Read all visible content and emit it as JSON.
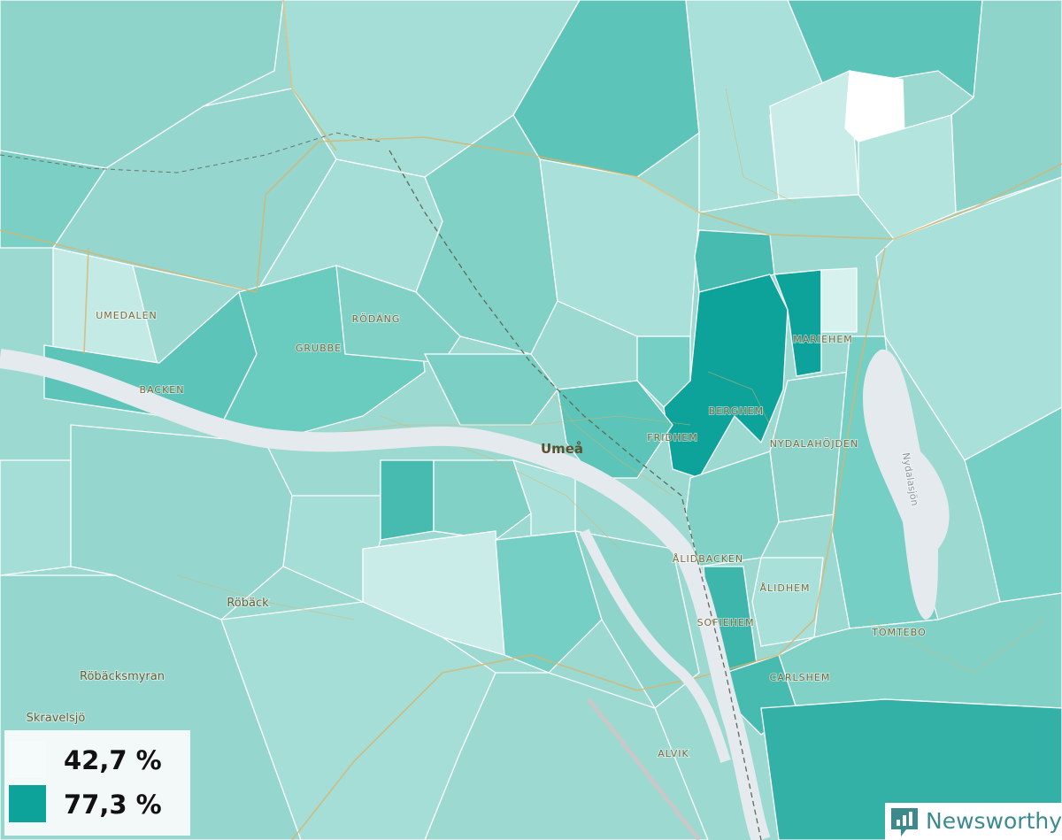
{
  "places": [
    "UMEDALEN",
    "BACKEN",
    "GRUBBE",
    "RÖDÄNG",
    "Umeå",
    "FRIDHEM",
    "BERGHEM",
    "MARIEHEM",
    "NYDALAHÖJDEN",
    "Nydalasjön",
    "ÅLIDBACKEN",
    "ÅLIDHEM",
    "SOFIEHEM",
    "TOMTEBO",
    "CARLSHEM",
    "ALVIK",
    "Röbäck",
    "Röbäcksmyran",
    "Skravelsjö"
  ],
  "legend": {
    "items": [
      {
        "label": "42,7 %",
        "color": "#f5fbfa"
      },
      {
        "label": "77,3 %",
        "color": "#0ea39a"
      }
    ]
  },
  "logo": "Newsworthy"
}
